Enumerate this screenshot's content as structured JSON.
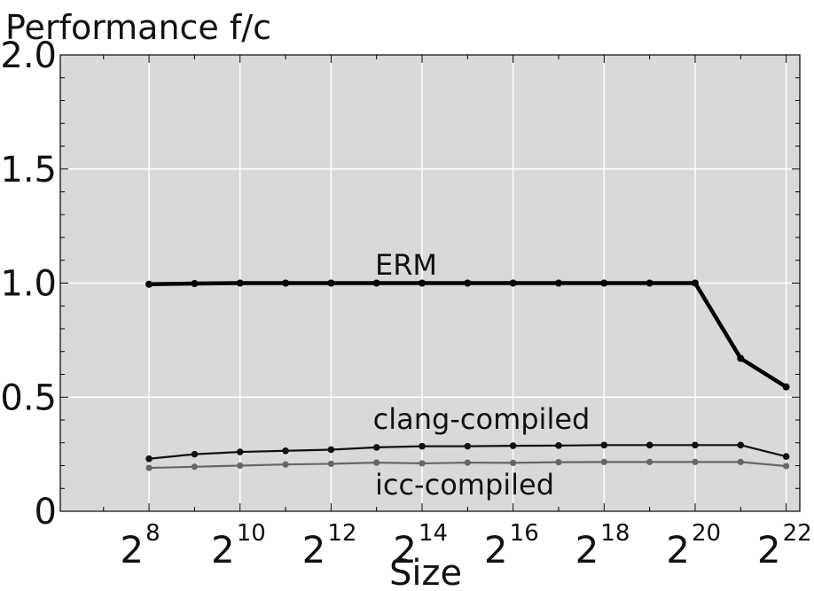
{
  "chart_data": {
    "type": "line",
    "title": "Performance f/c",
    "xlabel": "Size",
    "ylabel": "",
    "x_scale": "log2",
    "x_tick_base": "2",
    "x_tick_exponents": [
      "8",
      "10",
      "12",
      "14",
      "16",
      "18",
      "20",
      "22"
    ],
    "x_tick_values": [
      256,
      1024,
      4096,
      16384,
      65536,
      262144,
      1048576,
      4194304
    ],
    "y_ticks": [
      "0",
      "0.5",
      "1.0",
      "1.5",
      "2.0"
    ],
    "y_tick_values": [
      0,
      0.5,
      1.0,
      1.5,
      2.0
    ],
    "ylim": [
      0,
      2.0
    ],
    "x_range_exponent": [
      6.05,
      22.3
    ],
    "grid": true,
    "background": "#d9d9d9",
    "x": [
      256,
      512,
      1024,
      2048,
      4096,
      8192,
      16384,
      32768,
      65536,
      131072,
      262144,
      524288,
      1048576,
      2097152,
      4194304
    ],
    "series": [
      {
        "name": "ERM",
        "color": "#000000",
        "values": [
          0.995,
          0.998,
          1.0,
          1.0,
          1.0,
          1.0,
          1.0,
          1.0,
          1.0,
          1.0,
          1.0,
          1.0,
          1.0,
          0.67,
          0.545
        ]
      },
      {
        "name": "clang-compiled",
        "color": "#111111",
        "values": [
          0.23,
          0.25,
          0.26,
          0.265,
          0.27,
          0.28,
          0.285,
          0.285,
          0.287,
          0.288,
          0.29,
          0.29,
          0.29,
          0.29,
          0.24
        ]
      },
      {
        "name": "icc-compiled",
        "color": "#666666",
        "values": [
          0.19,
          0.195,
          0.2,
          0.205,
          0.208,
          0.213,
          0.21,
          0.213,
          0.212,
          0.215,
          0.216,
          0.216,
          0.216,
          0.216,
          0.198
        ]
      }
    ],
    "annotations": [
      "ERM",
      "clang-compiled",
      "icc-compiled"
    ]
  }
}
